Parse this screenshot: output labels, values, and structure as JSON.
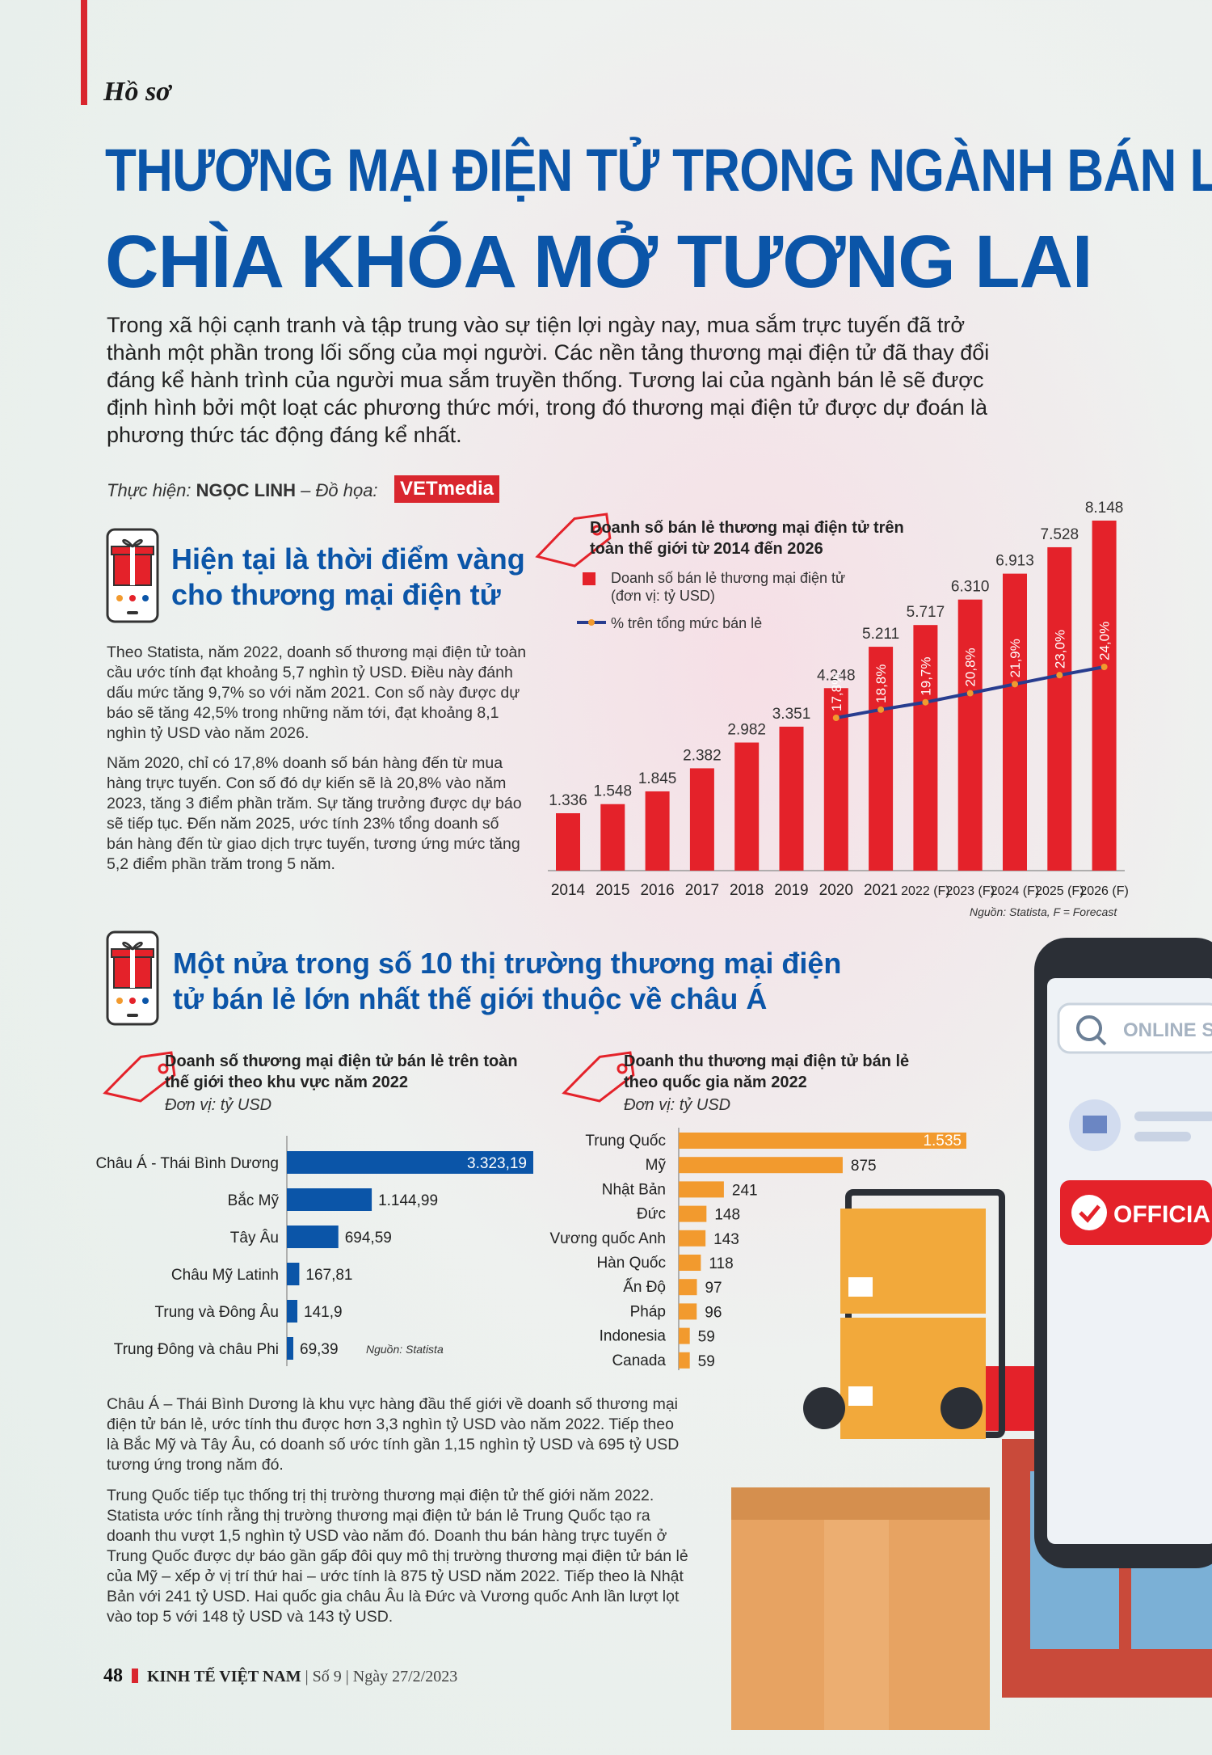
{
  "header": {
    "section_tag": "Hồ sơ"
  },
  "title": {
    "line1": "THƯƠNG MẠI ĐIỆN TỬ TRONG NGÀNH BÁN LẺ",
    "line2": "CHÌA KHÓA MỞ TƯƠNG LAI"
  },
  "intro": "Trong xã hội cạnh tranh và tập trung vào sự tiện lợi ngày nay, mua sắm trực tuyến đã trở thành một phần trong lối sống của mọi người. Các nền tảng thương mại điện tử đã thay đổi đáng kể hành trình của người mua sắm truyền thống. Tương lai của ngành bán lẻ sẽ được định hình bởi một loạt các phương thức mới, trong đó thương mại điện tử được dự đoán là phương thức tác động đáng kể nhất.",
  "credit": {
    "label": "Thực hiện:",
    "author": "NGỌC LINH",
    "design_label": "– Đồ họa:",
    "logo": "VETmedia"
  },
  "section1": {
    "heading": "Hiện tại là thời điểm vàng cho thương mại điện tử",
    "para1": "Theo Statista, năm 2022, doanh số thương mại điện tử toàn cầu ước tính đạt khoảng 5,7 nghìn tỷ USD. Điều này đánh dấu mức tăng 9,7% so với năm 2021. Con số này được dự báo sẽ tăng 42,5% trong những năm tới, đạt khoảng 8,1 nghìn tỷ USD vào năm 2026.",
    "para2": "Năm 2020, chỉ có 17,8% doanh số bán hàng đến từ mua hàng trực tuyến. Con số đó dự kiến sẽ là 20,8% vào năm 2023, tăng 3 điểm phần trăm. Sự tăng trưởng được dự báo sẽ tiếp tục. Đến năm 2025, ước tính 23% tổng doanh số bán hàng đến từ giao dịch trực tuyến, tương ứng mức tăng 5,2 điểm phần trăm trong 5 năm."
  },
  "section2": {
    "heading": "Một nửa trong số 10 thị trường thương mại điện tử bán lẻ lớn nhất thế giới thuộc về châu Á",
    "para1": "Châu Á – Thái Bình Dương là khu vực hàng đầu thế giới về doanh số thương mại điện tử bán lẻ, ước tính thu được hơn 3,3 nghìn tỷ USD vào năm 2022. Tiếp theo là Bắc Mỹ và Tây Âu, có doanh số ước tính gần 1,15 nghìn tỷ USD và 695 tỷ USD tương ứng trong năm đó.",
    "para2": "Trung Quốc tiếp tục thống trị thị trường thương mại điện tử thế giới năm 2022. Statista ước tính rằng thị trường thương mại điện tử bán lẻ Trung Quốc tạo ra doanh thu vượt 1,5 nghìn tỷ USD vào năm đó. Doanh thu bán hàng trực tuyến ở Trung Quốc được dự báo gần gấp đôi quy mô thị trường thương mại điện tử bán lẻ của Mỹ – xếp ở vị trí thứ hai – ước tính là 875 tỷ USD năm 2022. Tiếp theo là Nhật Bản với 241 tỷ USD. Hai quốc gia châu Âu là Đức và Vương quốc Anh lần lượt lọt vào top 5 với 148 tỷ USD và 143 tỷ USD."
  },
  "illustration": {
    "search_text": "ONLINE SH",
    "official_text": "OFFICIA"
  },
  "footer": {
    "page": "48",
    "magazine": "KINH TẾ VIỆT NAM",
    "issue": "Số 9",
    "date": "Ngày 27/2/2023"
  },
  "colors": {
    "blue": "#0b55a8",
    "red": "#e4222a",
    "orange": "#f29a2e",
    "navy": "#283d8f"
  },
  "chart_data": [
    {
      "type": "bar",
      "title": "Doanh số bán lẻ thương mại điện tử trên toàn thế giới từ 2014 đến 2026",
      "categories": [
        "2014",
        "2015",
        "2016",
        "2017",
        "2018",
        "2019",
        "2020",
        "2021",
        "2022 (F)",
        "2023 (F)",
        "2024 (F)",
        "2025 (F)",
        "2026 (F)"
      ],
      "series": [
        {
          "name": "Doanh số bán lẻ thương mại điện tử",
          "name_line2": "(đơn vị: tỷ USD)",
          "type": "bar",
          "values": [
            1336,
            1548,
            1845,
            2382,
            2982,
            3351,
            4248,
            5211,
            5717,
            6310,
            6913,
            7528,
            8148
          ],
          "labels": [
            "1.336",
            "1.548",
            "1.845",
            "2.382",
            "2.982",
            "3.351",
            "4.248",
            "5.211",
            "5.717",
            "6.310",
            "6.913",
            "7.528",
            "8.148"
          ]
        },
        {
          "name": "% trên tổng mức bán lẻ",
          "type": "line",
          "x": [
            "2020",
            "2021",
            "2022 (F)",
            "2023 (F)",
            "2024 (F)",
            "2025 (F)",
            "2026 (F)"
          ],
          "values": [
            17.8,
            18.8,
            19.7,
            20.8,
            21.9,
            23.0,
            24.0
          ],
          "labels": [
            "17,8%",
            "18,8%",
            "19,7%",
            "20,8%",
            "21,9%",
            "23,0%",
            "24,0%"
          ]
        }
      ],
      "ylim": [
        0,
        8148
      ],
      "source": "Nguồn: Statista, F = Forecast"
    },
    {
      "type": "bar",
      "orientation": "horizontal",
      "title": "Doanh số thương mại điện tử bán lẻ trên toàn thế giới theo khu vực năm 2022",
      "unit": "Đơn vị: tỷ USD",
      "categories": [
        "Châu Á - Thái Bình Dương",
        "Bắc Mỹ",
        "Tây Âu",
        "Châu Mỹ Latinh",
        "Trung và Đông Âu",
        "Trung Đông và châu Phi"
      ],
      "values": [
        3323.19,
        1144.99,
        694.59,
        167.81,
        141.9,
        69.39
      ],
      "labels": [
        "3.323,19",
        "1.144,99",
        "694,59",
        "167,81",
        "141,9",
        "69,39"
      ],
      "source": "Nguồn: Statista"
    },
    {
      "type": "bar",
      "orientation": "horizontal",
      "title": "Doanh thu thương mại điện tử bán lẻ theo quốc gia năm 2022",
      "unit": "Đơn vị: tỷ USD",
      "categories": [
        "Trung Quốc",
        "Mỹ",
        "Nhật Bản",
        "Đức",
        "Vương quốc Anh",
        "Hàn Quốc",
        "Ấn Độ",
        "Pháp",
        "Indonesia",
        "Canada"
      ],
      "values": [
        1535,
        875,
        241,
        148,
        143,
        118,
        97,
        96,
        59,
        59
      ],
      "labels": [
        "1.535",
        "875",
        "241",
        "148",
        "143",
        "118",
        "97",
        "96",
        "59",
        "59"
      ]
    }
  ]
}
